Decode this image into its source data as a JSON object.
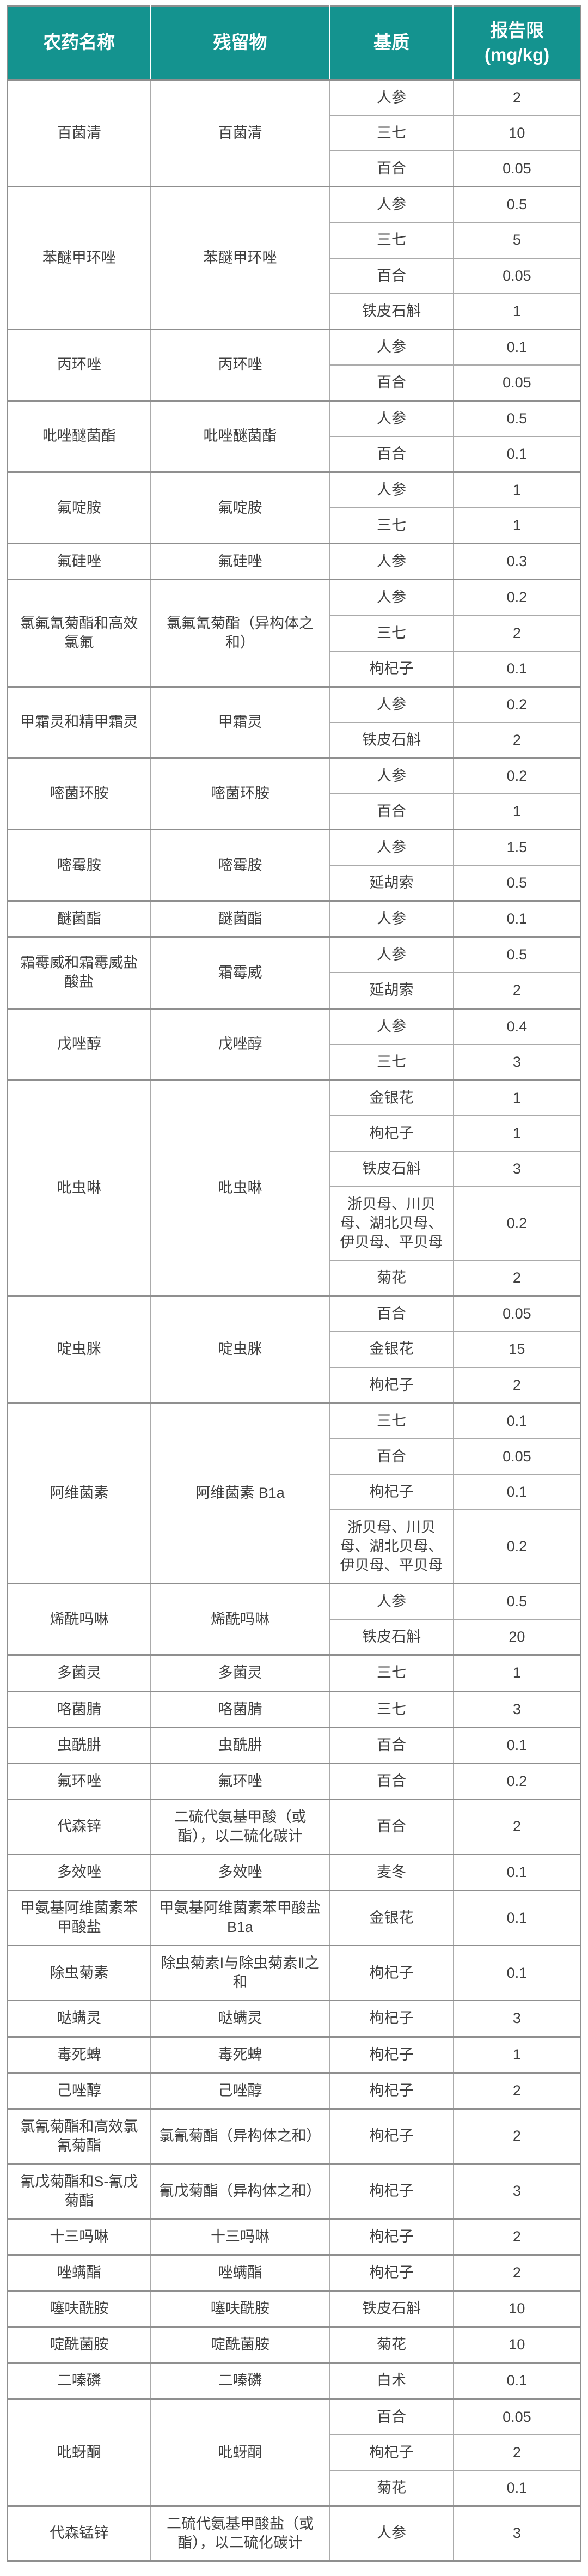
{
  "colors": {
    "header_bg": "#14938F",
    "header_text": "#FFFFFF",
    "cell_text": "#3F3F3F",
    "border_light": "#ABABAB",
    "border_dark": "#8F8F8F",
    "page_bg": "#FFFFFF"
  },
  "table": {
    "headers": {
      "pesticide": "农药名称",
      "residue": "残留物",
      "matrix": "基质",
      "limit_title": "报告限",
      "limit_unit": "(mg/kg)"
    },
    "groups": [
      {
        "name": "百菌清",
        "residue": "百菌清",
        "rows": [
          {
            "matrix": "人参",
            "limit": "2"
          },
          {
            "matrix": "三七",
            "limit": "10"
          },
          {
            "matrix": "百合",
            "limit": "0.05"
          }
        ]
      },
      {
        "name": "苯醚甲环唑",
        "residue": "苯醚甲环唑",
        "rows": [
          {
            "matrix": "人参",
            "limit": "0.5"
          },
          {
            "matrix": "三七",
            "limit": "5"
          },
          {
            "matrix": "百合",
            "limit": "0.05"
          },
          {
            "matrix": "铁皮石斛",
            "limit": "1"
          }
        ]
      },
      {
        "name": "丙环唑",
        "residue": "丙环唑",
        "rows": [
          {
            "matrix": "人参",
            "limit": "0.1"
          },
          {
            "matrix": "百合",
            "limit": "0.05"
          }
        ]
      },
      {
        "name": "吡唑醚菌酯",
        "residue": "吡唑醚菌酯",
        "rows": [
          {
            "matrix": "人参",
            "limit": "0.5"
          },
          {
            "matrix": "百合",
            "limit": "0.1"
          }
        ]
      },
      {
        "name": "氟啶胺",
        "residue": "氟啶胺",
        "rows": [
          {
            "matrix": "人参",
            "limit": "1"
          },
          {
            "matrix": "三七",
            "limit": "1"
          }
        ]
      },
      {
        "name": "氟硅唑",
        "residue": "氟硅唑",
        "rows": [
          {
            "matrix": "人参",
            "limit": "0.3"
          }
        ]
      },
      {
        "name": "氯氟氰菊酯和高效氯氟",
        "residue": "氯氟氰菊酯（异构体之和）",
        "rows": [
          {
            "matrix": "人参",
            "limit": "0.2"
          },
          {
            "matrix": "三七",
            "limit": "2"
          },
          {
            "matrix": "枸杞子",
            "limit": "0.1"
          }
        ]
      },
      {
        "name": "甲霜灵和精甲霜灵",
        "residue": "甲霜灵",
        "rows": [
          {
            "matrix": "人参",
            "limit": "0.2"
          },
          {
            "matrix": "铁皮石斛",
            "limit": "2"
          }
        ]
      },
      {
        "name": "嘧菌环胺",
        "residue": "嘧菌环胺",
        "rows": [
          {
            "matrix": "人参",
            "limit": "0.2"
          },
          {
            "matrix": "百合",
            "limit": "1"
          }
        ]
      },
      {
        "name": "嘧霉胺",
        "residue": "嘧霉胺",
        "rows": [
          {
            "matrix": "人参",
            "limit": "1.5"
          },
          {
            "matrix": "延胡索",
            "limit": "0.5"
          }
        ]
      },
      {
        "name": "醚菌酯",
        "residue": "醚菌酯",
        "rows": [
          {
            "matrix": "人参",
            "limit": "0.1"
          }
        ]
      },
      {
        "name": "霜霉威和霜霉威盐酸盐",
        "residue": "霜霉威",
        "rows": [
          {
            "matrix": "人参",
            "limit": "0.5"
          },
          {
            "matrix": "延胡索",
            "limit": "2"
          }
        ]
      },
      {
        "name": "戊唑醇",
        "residue": "戊唑醇",
        "rows": [
          {
            "matrix": "人参",
            "limit": "0.4"
          },
          {
            "matrix": "三七",
            "limit": "3"
          }
        ]
      },
      {
        "name": "吡虫啉",
        "residue": "吡虫啉",
        "rows": [
          {
            "matrix": "金银花",
            "limit": "1"
          },
          {
            "matrix": "枸杞子",
            "limit": "1"
          },
          {
            "matrix": "铁皮石斛",
            "limit": "3"
          },
          {
            "matrix": "浙贝母、川贝母、湖北贝母、伊贝母、平贝母",
            "limit": "0.2"
          },
          {
            "matrix": "菊花",
            "limit": "2"
          }
        ]
      },
      {
        "name": "啶虫脒",
        "residue": "啶虫脒",
        "rows": [
          {
            "matrix": "百合",
            "limit": "0.05"
          },
          {
            "matrix": "金银花",
            "limit": "15"
          },
          {
            "matrix": "枸杞子",
            "limit": "2"
          }
        ]
      },
      {
        "name": "阿维菌素",
        "residue": "阿维菌素 B1a",
        "rows": [
          {
            "matrix": "三七",
            "limit": "0.1"
          },
          {
            "matrix": "百合",
            "limit": "0.05"
          },
          {
            "matrix": "枸杞子",
            "limit": "0.1"
          },
          {
            "matrix": "浙贝母、川贝母、湖北贝母、伊贝母、平贝母",
            "limit": "0.2"
          }
        ]
      },
      {
        "name": "烯酰吗啉",
        "residue": "烯酰吗啉",
        "rows": [
          {
            "matrix": "人参",
            "limit": "0.5"
          },
          {
            "matrix": "铁皮石斛",
            "limit": "20"
          }
        ]
      },
      {
        "name": "多菌灵",
        "residue": "多菌灵",
        "rows": [
          {
            "matrix": "三七",
            "limit": "1"
          }
        ]
      },
      {
        "name": "咯菌腈",
        "residue": "咯菌腈",
        "rows": [
          {
            "matrix": "三七",
            "limit": "3"
          }
        ]
      },
      {
        "name": "虫酰肼",
        "residue": "虫酰肼",
        "rows": [
          {
            "matrix": "百合",
            "limit": "0.1"
          }
        ]
      },
      {
        "name": "氟环唑",
        "residue": "氟环唑",
        "rows": [
          {
            "matrix": "百合",
            "limit": "0.2"
          }
        ]
      },
      {
        "name": "代森锌",
        "residue": "二硫代氨基甲酸（或酯），以二硫化碳计",
        "rows": [
          {
            "matrix": "百合",
            "limit": "2"
          }
        ]
      },
      {
        "name": "多效唑",
        "residue": "多效唑",
        "rows": [
          {
            "matrix": "麦冬",
            "limit": "0.1"
          }
        ]
      },
      {
        "name": "甲氨基阿维菌素苯甲酸盐",
        "residue": "甲氨基阿维菌素苯甲酸盐 B1a",
        "rows": [
          {
            "matrix": "金银花",
            "limit": "0.1"
          }
        ]
      },
      {
        "name": "除虫菊素",
        "residue": "除虫菊素Ⅰ与除虫菊素Ⅱ之和",
        "rows": [
          {
            "matrix": "枸杞子",
            "limit": "0.1"
          }
        ]
      },
      {
        "name": "哒螨灵",
        "residue": "哒螨灵",
        "rows": [
          {
            "matrix": "枸杞子",
            "limit": "3"
          }
        ]
      },
      {
        "name": "毒死蜱",
        "residue": "毒死蜱",
        "rows": [
          {
            "matrix": "枸杞子",
            "limit": "1"
          }
        ]
      },
      {
        "name": "己唑醇",
        "residue": "己唑醇",
        "rows": [
          {
            "matrix": "枸杞子",
            "limit": "2"
          }
        ]
      },
      {
        "name": "氯氰菊酯和高效氯氰菊酯",
        "residue": "氯氰菊酯（异构体之和）",
        "rows": [
          {
            "matrix": "枸杞子",
            "limit": "2"
          }
        ]
      },
      {
        "name": "氰戊菊酯和S-氰戊菊酯",
        "residue": "氰戊菊酯（异构体之和）",
        "rows": [
          {
            "matrix": "枸杞子",
            "limit": "3"
          }
        ]
      },
      {
        "name": "十三吗啉",
        "residue": "十三吗啉",
        "rows": [
          {
            "matrix": "枸杞子",
            "limit": "2"
          }
        ]
      },
      {
        "name": "唑螨酯",
        "residue": "唑螨酯",
        "rows": [
          {
            "matrix": "枸杞子",
            "limit": "2"
          }
        ]
      },
      {
        "name": "噻呋酰胺",
        "residue": "噻呋酰胺",
        "rows": [
          {
            "matrix": "铁皮石斛",
            "limit": "10"
          }
        ]
      },
      {
        "name": "啶酰菌胺",
        "residue": "啶酰菌胺",
        "rows": [
          {
            "matrix": "菊花",
            "limit": "10"
          }
        ]
      },
      {
        "name": "二嗪磷",
        "residue": "二嗪磷",
        "rows": [
          {
            "matrix": "白术",
            "limit": "0.1"
          }
        ]
      },
      {
        "name": "吡蚜酮",
        "residue": "吡蚜酮",
        "rows": [
          {
            "matrix": "百合",
            "limit": "0.05"
          },
          {
            "matrix": "枸杞子",
            "limit": "2"
          },
          {
            "matrix": "菊花",
            "limit": "0.1"
          }
        ]
      },
      {
        "name": "代森锰锌",
        "residue": "二硫代氨基甲酸盐（或酯），以二硫化碳计",
        "rows": [
          {
            "matrix": "人参",
            "limit": "3"
          }
        ]
      }
    ]
  }
}
